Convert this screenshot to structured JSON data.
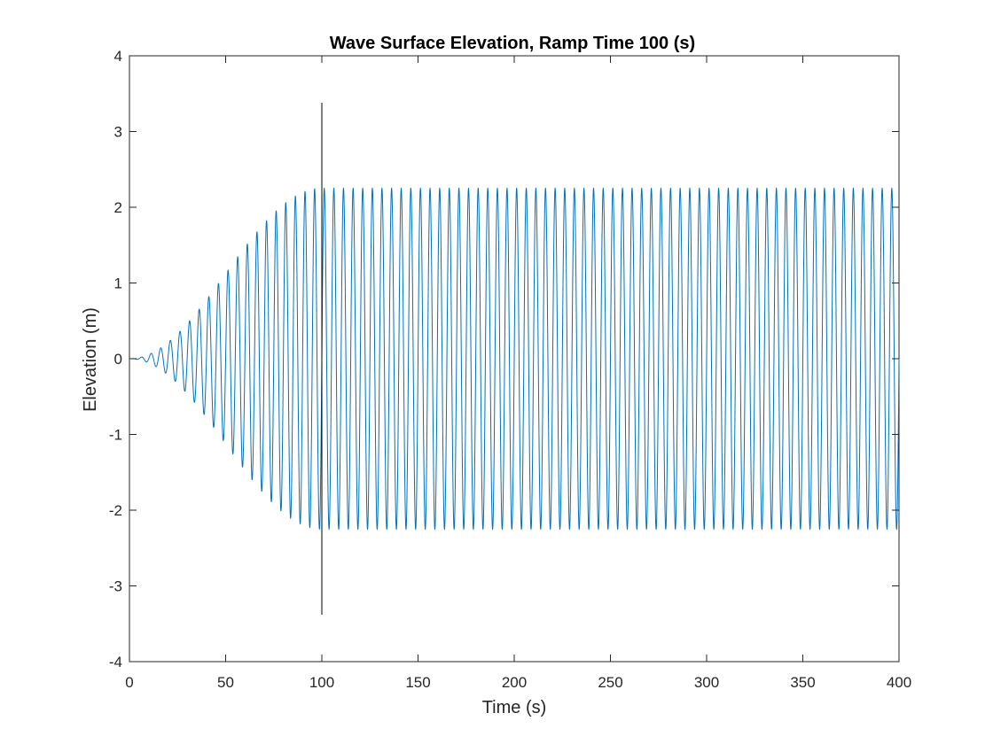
{
  "chart_data": {
    "type": "line",
    "title": "Wave Surface Elevation, Ramp Time 100 (s)",
    "xlabel": "Time (s)",
    "ylabel": "Elevation (m)",
    "xlim": [
      0,
      400
    ],
    "ylim": [
      -4,
      4
    ],
    "xticks": [
      0,
      50,
      100,
      150,
      200,
      250,
      300,
      350,
      400
    ],
    "yticks": [
      -4,
      -3,
      -2,
      -1,
      0,
      1,
      2,
      3,
      4
    ],
    "xtick_labels": [
      "0",
      "50",
      "100",
      "150",
      "200",
      "250",
      "300",
      "350",
      "400"
    ],
    "ytick_labels": [
      "-4",
      "-3",
      "-2",
      "-1",
      "0",
      "1",
      "2",
      "3",
      "4"
    ],
    "grid": false,
    "legend": "none",
    "series": [
      {
        "color": "#0072BD",
        "waveform": "sinusoid",
        "amplitude": 2.25,
        "period": 5,
        "ramp_time": 100,
        "ramp_shape": "half-cosine",
        "t_start": 0,
        "t_end": 400
      }
    ],
    "annotations": [
      {
        "type": "vertical-line",
        "x": 100,
        "y_range": [
          -3.38,
          3.38
        ],
        "color": "#000000"
      }
    ]
  }
}
